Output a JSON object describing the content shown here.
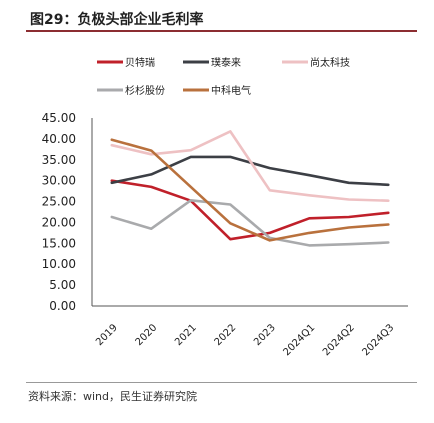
{
  "figure": {
    "title": "图29：负极头部企业毛利率",
    "source": "资料来源：wind，民生证券研究院"
  },
  "colors": {
    "title_rule": "#8c2d31",
    "axis": "#555555"
  },
  "chart_data": {
    "type": "line",
    "title": "",
    "xlabel": "",
    "ylabel": "",
    "categories": [
      "2019",
      "2020",
      "2021",
      "2022",
      "2023",
      "2024Q1",
      "2024Q2",
      "2024Q3"
    ],
    "ylim": [
      0,
      45
    ],
    "yticks": [
      "0.00",
      "5.00",
      "10.00",
      "15.00",
      "20.00",
      "25.00",
      "30.00",
      "35.00",
      "40.00",
      "45.00"
    ],
    "grid": false,
    "legend_position": "top",
    "series": [
      {
        "name": "贝特瑞",
        "color": "#c0202a",
        "values": [
          30.0,
          28.5,
          25.2,
          16.0,
          17.5,
          21.0,
          21.3,
          22.3
        ]
      },
      {
        "name": "璞泰来",
        "color": "#3c3f45",
        "values": [
          29.5,
          31.5,
          35.7,
          35.7,
          33.0,
          31.3,
          29.5,
          29.0
        ]
      },
      {
        "name": "尚太科技",
        "color": "#eec1c3",
        "values": [
          38.5,
          36.3,
          37.3,
          41.8,
          27.7,
          26.5,
          25.5,
          25.2
        ]
      },
      {
        "name": "杉杉股份",
        "color": "#a9aaac",
        "values": [
          21.3,
          18.5,
          25.3,
          24.3,
          16.3,
          14.5,
          14.8,
          15.2
        ]
      },
      {
        "name": "中科电气",
        "color": "#b9713d",
        "values": [
          39.8,
          37.2,
          28.5,
          19.8,
          15.7,
          17.5,
          18.8,
          19.5
        ]
      }
    ]
  }
}
